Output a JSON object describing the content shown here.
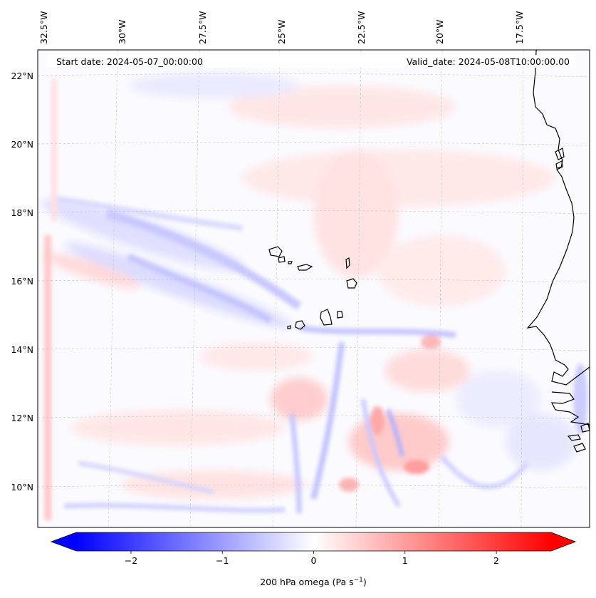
{
  "map": {
    "start_label": "Start date: 2024-05-07_00:00:00",
    "valid_label": "Valid_date: 2024-05-08T10:00:00.00",
    "lon_labels": [
      "32.5°W",
      "30°W",
      "27.5°W",
      "25°W",
      "22.5°W",
      "20°W",
      "17.5°W"
    ],
    "lat_labels": [
      "22°N",
      "20°N",
      "18°N",
      "16°N",
      "14°N",
      "12°N",
      "10°N"
    ],
    "field": "200 hPa omega",
    "colormap": "bwr",
    "grid": true
  },
  "colorbar": {
    "label_main": "200 hPa omega (Pa s",
    "label_exp": "−1",
    "label_close": ")",
    "ticks": [
      "−2",
      "−1",
      "0",
      "1",
      "2"
    ],
    "tick_values": [
      -2,
      -1,
      0,
      1,
      2
    ],
    "range": [
      -2.6,
      2.6
    ],
    "extend": "both",
    "colors": {
      "negative": "#0000ff",
      "zero": "#ffffff",
      "positive": "#ff0000"
    }
  }
}
